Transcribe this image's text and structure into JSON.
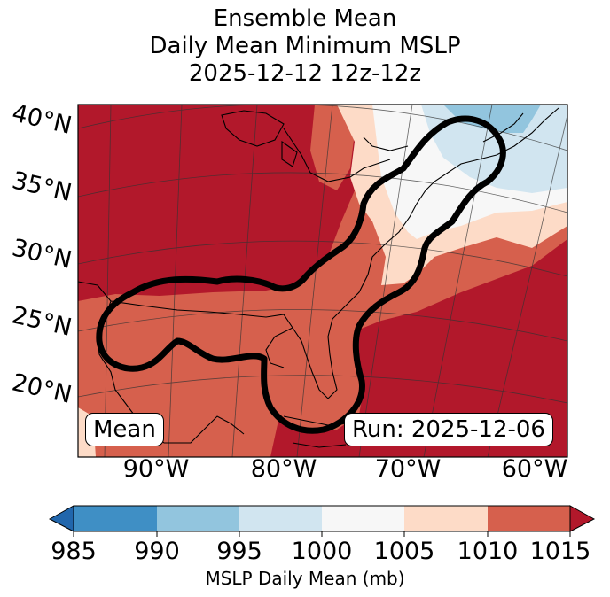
{
  "title": {
    "line1": "Ensemble Mean",
    "line2": "Daily Mean Minimum MSLP",
    "line3": "2025-12-12 12z-12z"
  },
  "map": {
    "lat_labels": [
      "40°N",
      "35°N",
      "30°N",
      "25°N",
      "20°N"
    ],
    "lon_labels": [
      "90°W",
      "80°W",
      "70°W",
      "60°W"
    ],
    "left_box": "Mean",
    "right_box": "Run: 2025-12-06",
    "contour_color": "#000000",
    "coastline_color": "#000000"
  },
  "colorbar": {
    "ticks": [
      "985",
      "990",
      "995",
      "1000",
      "1005",
      "1010",
      "1015"
    ],
    "label": "MSLP Daily Mean (mb)",
    "colors": [
      "#2166ac",
      "#3f8fc5",
      "#92c5de",
      "#d1e5f0",
      "#f7f7f7",
      "#fddbc7",
      "#d6604d",
      "#b2182b"
    ]
  }
}
